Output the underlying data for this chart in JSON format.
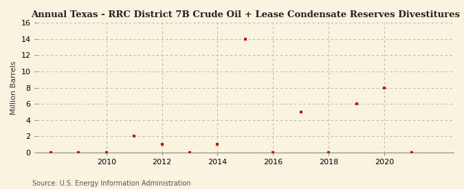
{
  "title": "Annual Texas - RRC District 7B Crude Oil + Lease Condensate Reserves Divestitures",
  "ylabel": "Million Barrels",
  "source": "Source: U.S. Energy Information Administration",
  "background_color": "#faf3e0",
  "plot_bg_color": "#faf3e0",
  "years": [
    2008,
    2009,
    2010,
    2011,
    2012,
    2013,
    2014,
    2015,
    2016,
    2017,
    2018,
    2019,
    2020,
    2021
  ],
  "values": [
    0.0,
    0.0,
    0.0,
    2.0,
    1.0,
    0.0,
    1.0,
    14.0,
    0.0,
    5.0,
    0.0,
    6.0,
    8.0,
    0.0
  ],
  "marker_color": "#cc0000",
  "marker": "s",
  "marker_size": 3.5,
  "xlim": [
    2007.5,
    2022.5
  ],
  "ylim": [
    0,
    16
  ],
  "yticks": [
    0,
    2,
    4,
    6,
    8,
    10,
    12,
    14,
    16
  ],
  "xticks": [
    2010,
    2012,
    2014,
    2016,
    2018,
    2020
  ],
  "grid_color": "#aaaaaa",
  "grid_style": "--",
  "title_fontsize": 9.5,
  "label_fontsize": 8,
  "tick_fontsize": 8,
  "source_fontsize": 7
}
